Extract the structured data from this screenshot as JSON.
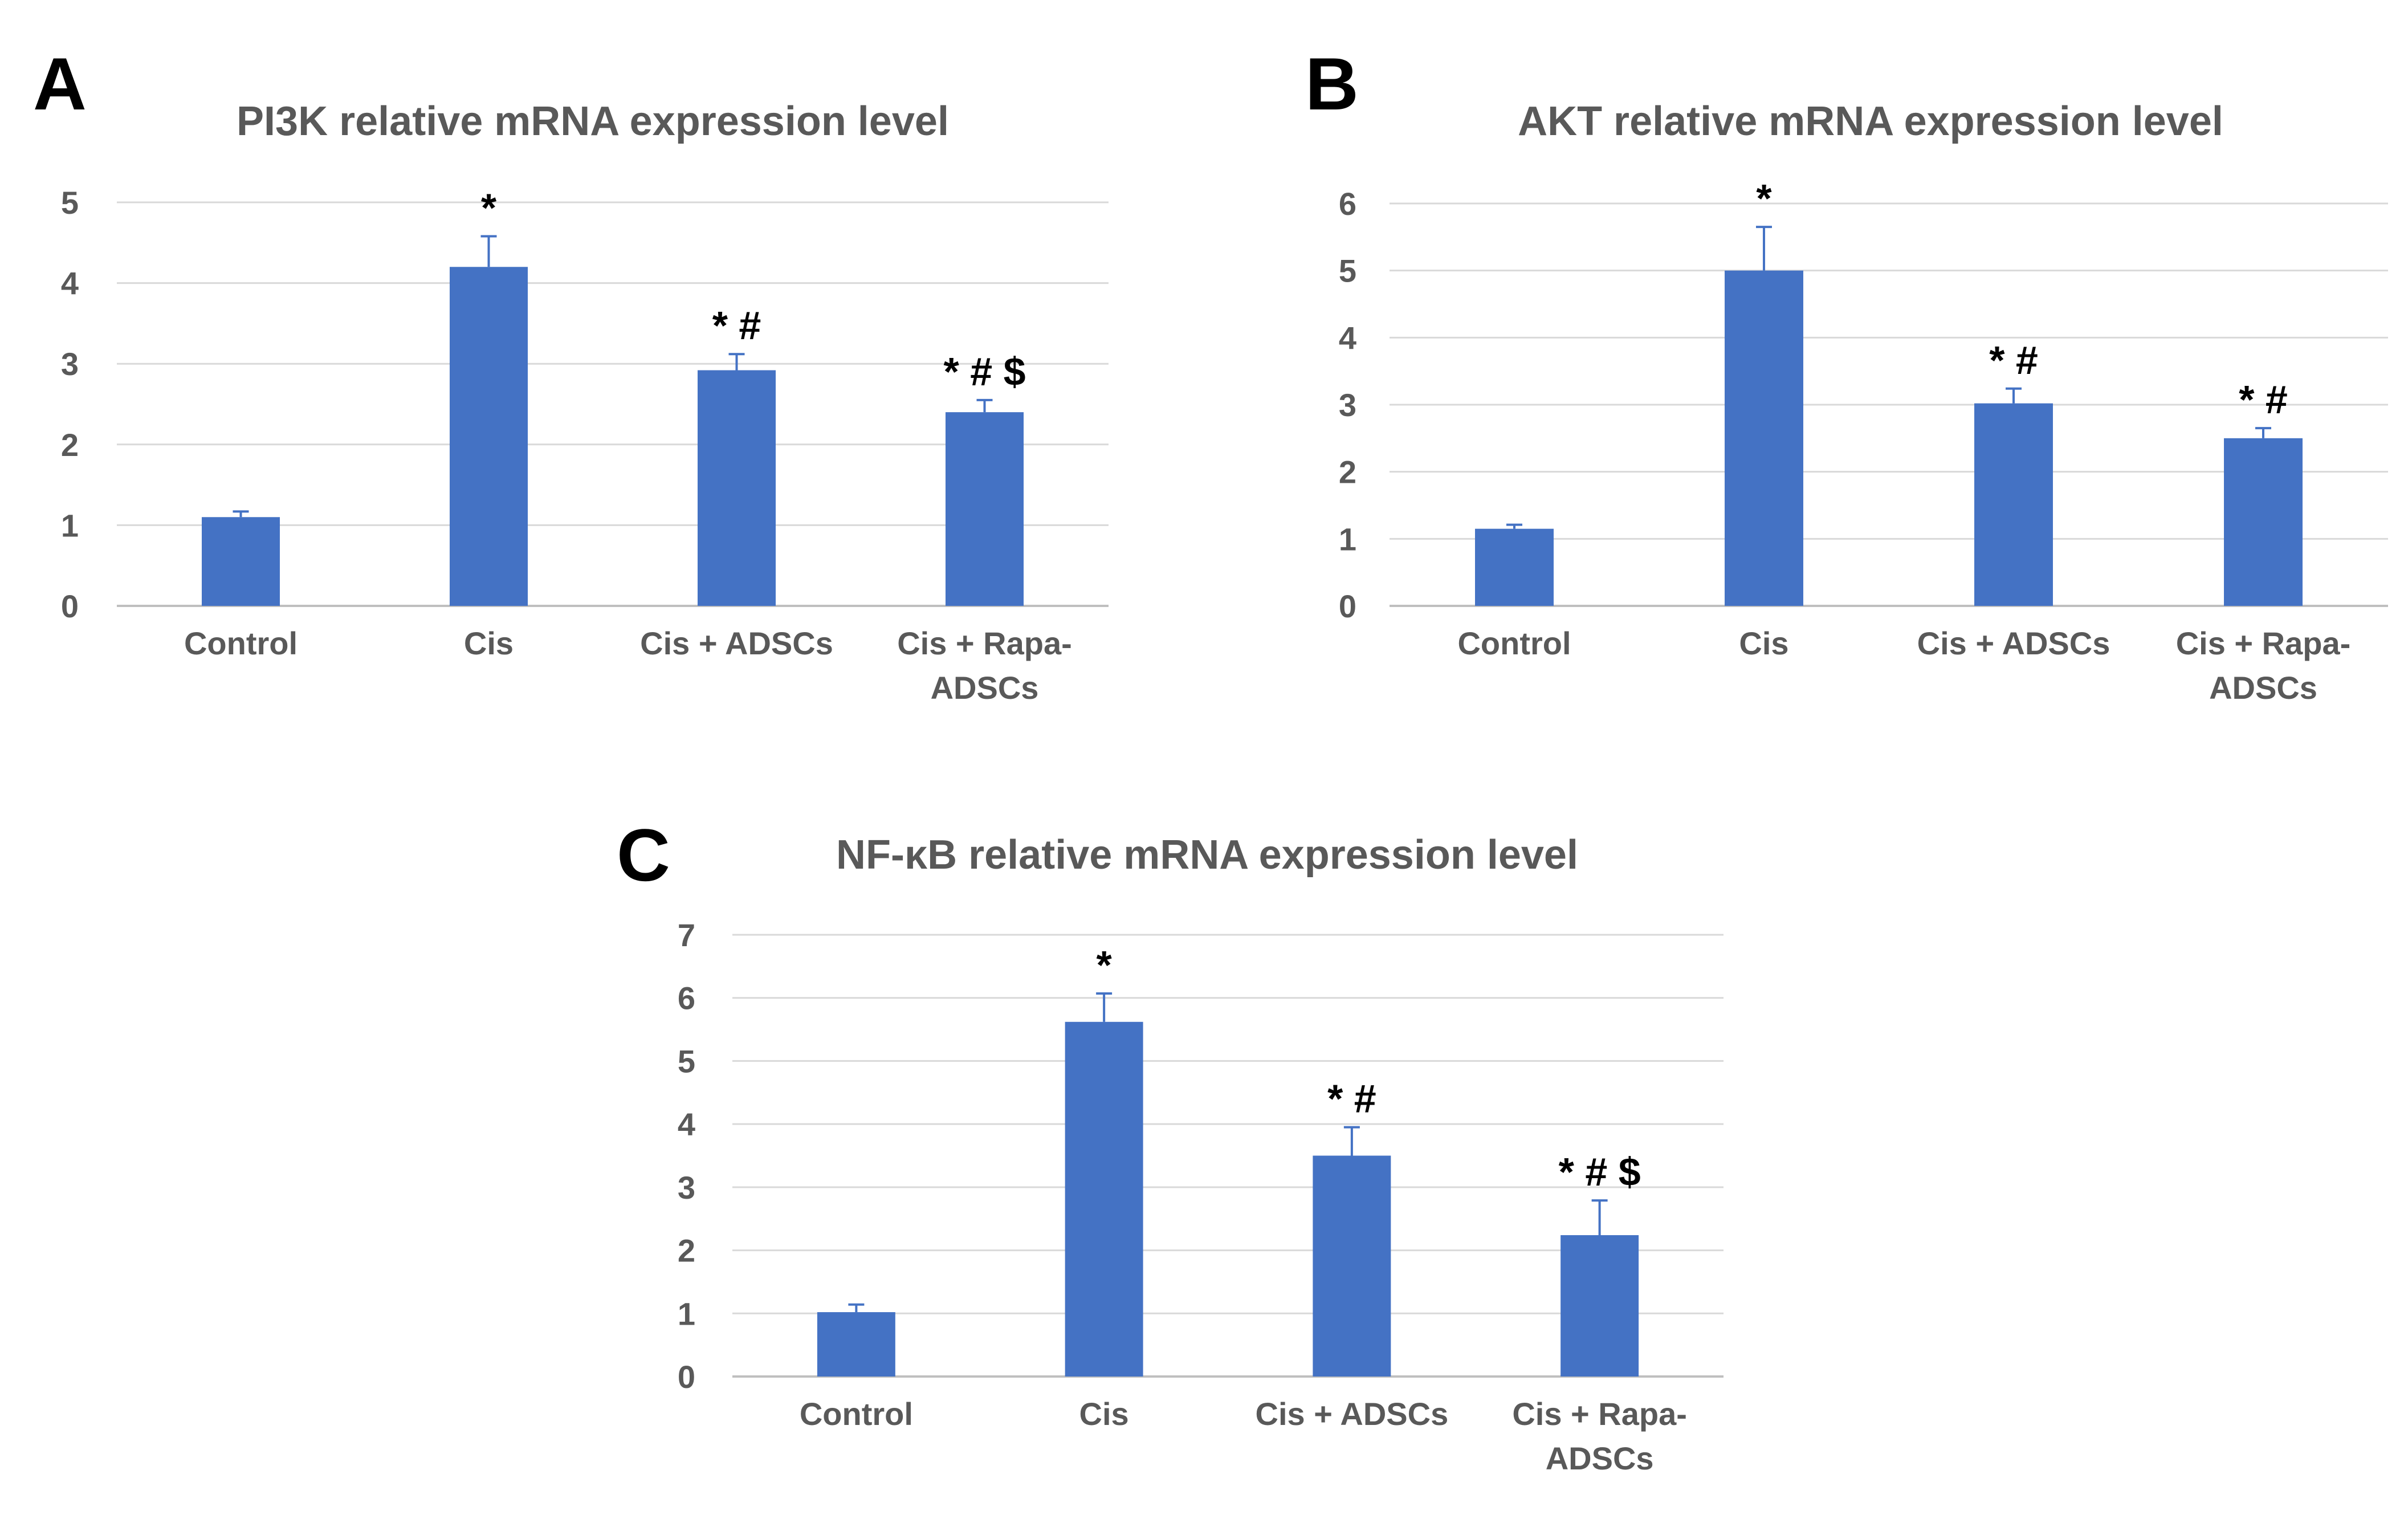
{
  "figure": {
    "background": "#ffffff"
  },
  "style": {
    "bar_color": "#4472C4",
    "grid_color": "#D9D9D9",
    "axis_color": "#BFBFBF",
    "text_color": "#595959",
    "panel_label_color": "#000000"
  },
  "chart_data": [
    {
      "panel_label": "A",
      "type": "bar",
      "title": "PI3K relative mRNA expression level",
      "categories": [
        "Control",
        "Cis",
        "Cis + ADSCs",
        "Cis + Rapa-ADSCs"
      ],
      "category_lines": [
        [
          "Control"
        ],
        [
          "Cis"
        ],
        [
          "Cis + ADSCs"
        ],
        [
          "Cis + Rapa-",
          "ADSCs"
        ]
      ],
      "values": [
        1.1,
        4.2,
        2.92,
        2.4
      ],
      "errors": [
        0.07,
        0.38,
        0.2,
        0.15
      ],
      "annotations": [
        "",
        "*",
        "* #",
        "* # $"
      ],
      "ylim": [
        0,
        5
      ],
      "yticks": [
        0,
        1,
        2,
        3,
        4,
        5
      ],
      "xlabel": "",
      "ylabel": "",
      "grid": true
    },
    {
      "panel_label": "B",
      "type": "bar",
      "title": "AKT relative mRNA expression level",
      "categories": [
        "Control",
        "Cis",
        "Cis + ADSCs",
        "Cis + Rapa-ADSCs"
      ],
      "category_lines": [
        [
          "Control"
        ],
        [
          "Cis"
        ],
        [
          "Cis + ADSCs"
        ],
        [
          "Cis + Rapa-",
          "ADSCs"
        ]
      ],
      "values": [
        1.15,
        5.0,
        3.02,
        2.5
      ],
      "errors": [
        0.06,
        0.65,
        0.22,
        0.15
      ],
      "annotations": [
        "",
        "*",
        "* #",
        "* #"
      ],
      "ylim": [
        0,
        6
      ],
      "yticks": [
        0,
        1,
        2,
        3,
        4,
        5,
        6
      ],
      "xlabel": "",
      "ylabel": "",
      "grid": true
    },
    {
      "panel_label": "C",
      "type": "bar",
      "title": "NF-κB relative mRNA expression level",
      "categories": [
        "Control",
        "Cis",
        "Cis + ADSCs",
        "Cis + Rapa-ADSCs"
      ],
      "category_lines": [
        [
          "Control"
        ],
        [
          "Cis"
        ],
        [
          "Cis + ADSCs"
        ],
        [
          "Cis + Rapa-",
          "ADSCs"
        ]
      ],
      "values": [
        1.02,
        5.62,
        3.5,
        2.24
      ],
      "errors": [
        0.12,
        0.45,
        0.45,
        0.55
      ],
      "annotations": [
        "",
        "*",
        "* #",
        "* # $"
      ],
      "ylim": [
        0,
        7
      ],
      "yticks": [
        0,
        1,
        2,
        3,
        4,
        5,
        6,
        7
      ],
      "xlabel": "",
      "ylabel": "",
      "grid": true
    }
  ]
}
